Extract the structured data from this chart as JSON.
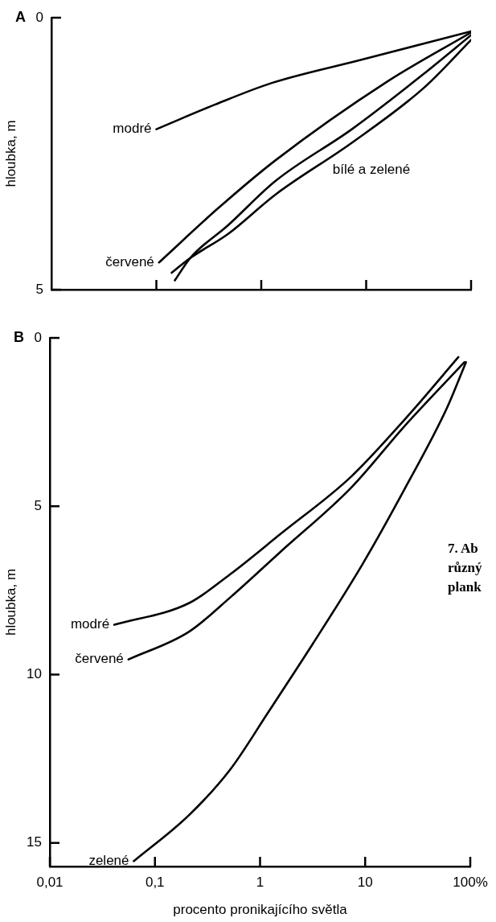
{
  "chart_data": [
    {
      "type": "line",
      "title": "A",
      "ylabel": "hloubka, m",
      "xlim": [
        0.01,
        100
      ],
      "xticks": [
        {
          "value": 0.1,
          "label": null
        },
        {
          "value": 1,
          "label": null
        },
        {
          "value": 10,
          "label": null
        },
        {
          "value": 100,
          "label": null
        }
      ],
      "ylim": [
        5,
        0
      ],
      "yticks": [
        0,
        5
      ],
      "log": "x",
      "grid": false,
      "legend": false,
      "tick_labels": "y",
      "marker": "none",
      "line_style": "solid",
      "series": [
        {
          "name": "modré",
          "color": "#000000",
          "x": [
            0.1,
            0.36,
            1.26,
            8.7,
            100
          ],
          "values": [
            2.05,
            1.6,
            1.2,
            0.78,
            0.25
          ]
        },
        {
          "name": "červené",
          "color": "#000000",
          "x": [
            0.106,
            0.39,
            1.37,
            16,
            100
          ],
          "values": [
            4.5,
            3.5,
            2.62,
            1.17,
            0.27
          ]
        },
        {
          "color": "#000000",
          "x": [
            0.15,
            0.21,
            0.48,
            1.37,
            7.3,
            35,
            100
          ],
          "values": [
            4.83,
            4.42,
            3.82,
            3.0,
            2.05,
            1.04,
            0.32
          ]
        },
        {
          "color": "#000000",
          "x": [
            0.14,
            0.21,
            0.48,
            1.37,
            7.3,
            35,
            100
          ],
          "values": [
            4.69,
            4.42,
            3.98,
            3.25,
            2.3,
            1.3,
            0.41
          ]
        }
      ],
      "annotations": [
        "bílé a zelené"
      ]
    },
    {
      "type": "line",
      "title": "B",
      "xlabel": "procento pronikajícího světla",
      "ylabel": "hloubka, m",
      "xlim": [
        0.01,
        100
      ],
      "xticks": [
        {
          "value": 0.01,
          "label": "0,01"
        },
        {
          "value": 0.1,
          "label": "0,1"
        },
        1,
        10,
        {
          "value": 100,
          "label": "100%"
        }
      ],
      "ylim": [
        15.7,
        0
      ],
      "yticks": [
        0,
        5,
        10,
        15
      ],
      "log": "x",
      "grid": false,
      "legend": false,
      "marker": "none",
      "line_style": "solid",
      "series": [
        {
          "name": "modré",
          "color": "#000000",
          "x": [
            0.041,
            0.21,
            0.52,
            1.57,
            7.3,
            24,
            77
          ],
          "values": [
            8.52,
            7.88,
            7.02,
            5.82,
            4.13,
            2.41,
            0.57
          ]
        },
        {
          "name": "červené",
          "color": "#000000",
          "x": [
            0.056,
            0.21,
            0.52,
            1.57,
            7.3,
            24,
            88
          ],
          "values": [
            9.55,
            8.73,
            7.71,
            6.35,
            4.46,
            2.6,
            0.72
          ]
        },
        {
          "name": "zelené",
          "color": "#000000",
          "x": [
            0.063,
            0.21,
            0.52,
            1.19,
            3.2,
            9.6,
            24,
            60,
            91
          ],
          "values": [
            15.54,
            14.18,
            12.82,
            11.13,
            9.07,
            6.68,
            4.46,
            2.08,
            0.72
          ]
        }
      ],
      "annotations": [
        "7. Ab\nrůzný\nplank"
      ]
    }
  ]
}
